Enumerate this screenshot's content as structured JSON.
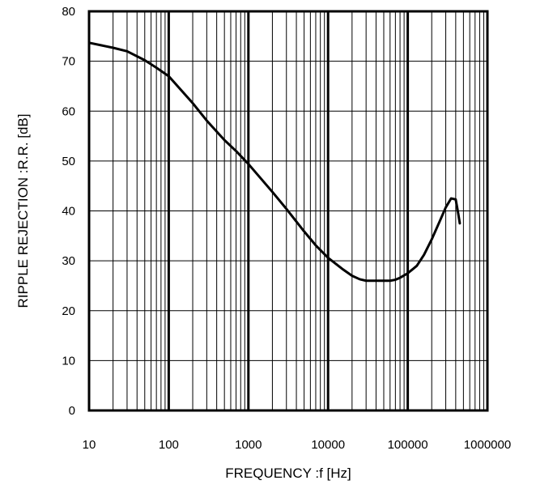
{
  "chart_data": {
    "type": "line",
    "title": "",
    "xlabel": "FREQUENCY :f [Hz]",
    "ylabel": "RIPPLE REJECTION :R.R. [dB]",
    "xscale": "log",
    "xlim": [
      10,
      1000000
    ],
    "ylim": [
      0,
      80
    ],
    "grid": true,
    "x_ticks": [
      "10",
      "100",
      "1000",
      "10000",
      "100000",
      "1000000"
    ],
    "y_ticks": [
      "0",
      "10",
      "20",
      "30",
      "40",
      "50",
      "60",
      "70",
      "80"
    ],
    "series": [
      {
        "x": [
          10,
          20,
          30,
          50,
          70,
          100,
          200,
          300,
          500,
          700,
          1000,
          2000,
          3000,
          5000,
          7000,
          10000,
          15000,
          20000,
          25000,
          30000,
          40000,
          50000,
          60000,
          70000,
          80000,
          100000,
          130000,
          160000,
          200000,
          250000,
          300000,
          350000,
          400000,
          430000,
          450000
        ],
        "y": [
          73.7,
          72.7,
          72,
          70.2,
          68.7,
          67,
          61.6,
          58.1,
          54.2,
          52,
          49.4,
          43.8,
          40.4,
          35.9,
          33.1,
          30.6,
          28.4,
          27,
          26.3,
          26,
          26,
          26,
          26,
          26.2,
          26.6,
          27.5,
          29,
          31.2,
          34.3,
          37.8,
          40.7,
          42.5,
          42.3,
          39.5,
          37.5
        ]
      }
    ]
  }
}
